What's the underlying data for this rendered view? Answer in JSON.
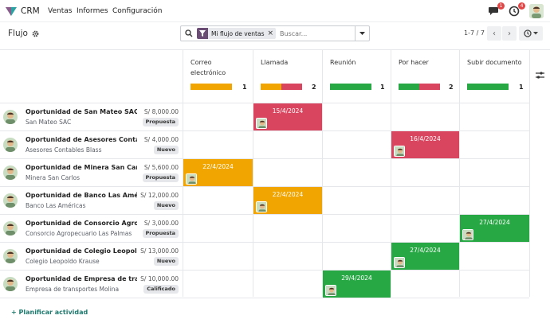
{
  "nav": {
    "app_name": "CRM",
    "menus": [
      "Ventas",
      "Informes",
      "Configuración"
    ],
    "messages_count": "1",
    "activities_count": "4"
  },
  "control": {
    "breadcrumb": "Flujo",
    "facet": "Mi flujo de ventas",
    "search_placeholder": "Buscar...",
    "pager": "1-7 / 7"
  },
  "columns": [
    {
      "title_line1": "Correo",
      "title_line2": "electrónico",
      "count": "1",
      "bar": [
        {
          "color": "#f0a500",
          "fraction": 1.0
        }
      ]
    },
    {
      "title_line1": "Llamada",
      "title_line2": "",
      "count": "2",
      "bar": [
        {
          "color": "#f0a500",
          "fraction": 0.5
        },
        {
          "color": "#d9455f",
          "fraction": 0.5
        }
      ]
    },
    {
      "title_line1": "Reunión",
      "title_line2": "",
      "count": "1",
      "bar": [
        {
          "color": "#28a745",
          "fraction": 1.0
        }
      ]
    },
    {
      "title_line1": "Por hacer",
      "title_line2": "",
      "count": "2",
      "bar": [
        {
          "color": "#28a745",
          "fraction": 0.5
        },
        {
          "color": "#d9455f",
          "fraction": 0.5
        }
      ]
    },
    {
      "title_line1": "Subir documento",
      "title_line2": "",
      "count": "1",
      "bar": [
        {
          "color": "#28a745",
          "fraction": 1.0
        }
      ]
    }
  ],
  "rows": [
    {
      "name": "Oportunidad de San Mateo SAC",
      "company": "San Mateo SAC",
      "amount": "S/ 8,000.00",
      "stage": "Propuesta",
      "activity": {
        "column": 1,
        "date": "15/4/2024",
        "color": "#d9455f"
      }
    },
    {
      "name": "Oportunidad de Asesores Contables…",
      "company": "Asesores Contables Blass",
      "amount": "S/ 4,000.00",
      "stage": "Nuevo",
      "activity": {
        "column": 3,
        "date": "16/4/2024",
        "color": "#d9455f"
      }
    },
    {
      "name": "Oportunidad de Minera San Carlos",
      "company": "Minera San Carlos",
      "amount": "S/ 5,600.00",
      "stage": "Propuesta",
      "activity": {
        "column": 0,
        "date": "22/4/2024",
        "color": "#f0a500"
      }
    },
    {
      "name": "Oportunidad de Banco Las Américas",
      "company": "Banco Las Américas",
      "amount": "S/ 12,000.00",
      "stage": "Nuevo",
      "activity": {
        "column": 1,
        "date": "22/4/2024",
        "color": "#f0a500"
      }
    },
    {
      "name": "Oportunidad de Consorcio Agropec…",
      "company": "Consorcio Agropecuario Las Palmas",
      "amount": "S/ 3,000.00",
      "stage": "Propuesta",
      "activity": {
        "column": 4,
        "date": "27/4/2024",
        "color": "#28a745"
      }
    },
    {
      "name": "Oportunidad de Colegio Leopoldo …",
      "company": "Colegio Leopoldo Krause",
      "amount": "S/ 13,000.00",
      "stage": "Nuevo",
      "activity": {
        "column": 3,
        "date": "27/4/2024",
        "color": "#28a745"
      }
    },
    {
      "name": "Oportunidad de Empresa de transp…",
      "company": "Empresa de transportes Molina",
      "amount": "S/ 10,000.00",
      "stage": "Calificado",
      "activity": {
        "column": 2,
        "date": "29/4/2024",
        "color": "#28a745"
      }
    }
  ],
  "footer": {
    "plan_label": "+ Planificar actividad"
  },
  "icons": {
    "logo": "crm-logo-icon",
    "settings": "gear-icon",
    "search": "search-icon",
    "filter": "filter-icon",
    "chat": "chat-icon",
    "clock": "clock-icon",
    "view": "activity-view-icon",
    "adjust": "sliders-icon"
  },
  "colors": {
    "overdue": "#d9455f",
    "today": "#f0a500",
    "planned": "#28a745",
    "accent": "#6b4c75"
  }
}
